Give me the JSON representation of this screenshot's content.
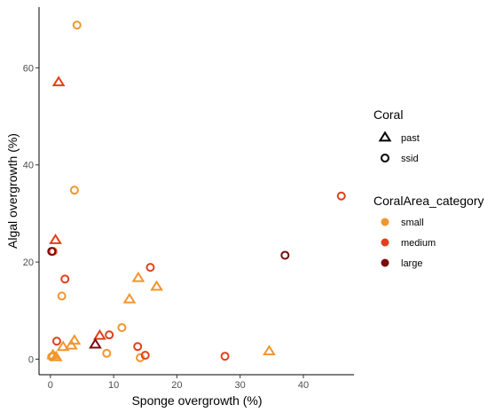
{
  "chart_data": {
    "type": "scatter",
    "title": "",
    "xlabel": "Sponge overgrowth (%)",
    "ylabel": "Algal overgrowth (%)",
    "xlim": [
      -1.8,
      48
    ],
    "ylim": [
      -3.2,
      72.5
    ],
    "xticks": [
      0,
      10,
      20,
      30,
      40
    ],
    "yticks": [
      0,
      20,
      40,
      60
    ],
    "grid": false,
    "legend_position": "right",
    "legends": [
      {
        "title": "Coral",
        "entries": [
          {
            "label": "past",
            "shape": "triangle"
          },
          {
            "label": "ssid",
            "shape": "circle"
          }
        ]
      },
      {
        "title": "CoralArea_category",
        "entries": [
          {
            "label": "small",
            "color": "#F0962E"
          },
          {
            "label": "medium",
            "color": "#E0401C"
          },
          {
            "label": "large",
            "color": "#7A0C0C"
          }
        ]
      }
    ],
    "colors": {
      "small": "#F0962E",
      "medium": "#E0401C",
      "large": "#7A0C0C"
    },
    "points": [
      {
        "x": 4.2,
        "y": 68.8,
        "coral": "ssid",
        "area": "small"
      },
      {
        "x": 3.8,
        "y": 34.8,
        "coral": "ssid",
        "area": "small"
      },
      {
        "x": 1.8,
        "y": 13.0,
        "coral": "ssid",
        "area": "small"
      },
      {
        "x": 11.3,
        "y": 6.5,
        "coral": "ssid",
        "area": "small"
      },
      {
        "x": 8.9,
        "y": 1.2,
        "coral": "ssid",
        "area": "small"
      },
      {
        "x": 14.2,
        "y": 0.3,
        "coral": "ssid",
        "area": "small"
      },
      {
        "x": 0.2,
        "y": 0.5,
        "coral": "ssid",
        "area": "small"
      },
      {
        "x": 13.9,
        "y": 16.7,
        "coral": "past",
        "area": "small"
      },
      {
        "x": 16.8,
        "y": 14.9,
        "coral": "past",
        "area": "small"
      },
      {
        "x": 12.5,
        "y": 12.3,
        "coral": "past",
        "area": "small"
      },
      {
        "x": 3.8,
        "y": 3.8,
        "coral": "past",
        "area": "small"
      },
      {
        "x": 3.3,
        "y": 2.8,
        "coral": "past",
        "area": "small"
      },
      {
        "x": 2.0,
        "y": 2.5,
        "coral": "past",
        "area": "small"
      },
      {
        "x": 34.6,
        "y": 1.6,
        "coral": "past",
        "area": "small"
      },
      {
        "x": 0.4,
        "y": 0.8,
        "coral": "past",
        "area": "small"
      },
      {
        "x": 0.9,
        "y": 0.4,
        "coral": "past",
        "area": "small"
      },
      {
        "x": 1.3,
        "y": 57.0,
        "coral": "past",
        "area": "medium"
      },
      {
        "x": 0.8,
        "y": 24.5,
        "coral": "past",
        "area": "medium"
      },
      {
        "x": 7.8,
        "y": 4.8,
        "coral": "past",
        "area": "medium"
      },
      {
        "x": 46.0,
        "y": 33.6,
        "coral": "ssid",
        "area": "medium"
      },
      {
        "x": 15.8,
        "y": 18.9,
        "coral": "ssid",
        "area": "medium"
      },
      {
        "x": 2.3,
        "y": 16.5,
        "coral": "ssid",
        "area": "medium"
      },
      {
        "x": 9.3,
        "y": 5.0,
        "coral": "ssid",
        "area": "medium"
      },
      {
        "x": 1.0,
        "y": 3.7,
        "coral": "ssid",
        "area": "medium"
      },
      {
        "x": 13.8,
        "y": 2.6,
        "coral": "ssid",
        "area": "medium"
      },
      {
        "x": 15.0,
        "y": 0.8,
        "coral": "ssid",
        "area": "medium"
      },
      {
        "x": 27.6,
        "y": 0.6,
        "coral": "ssid",
        "area": "medium"
      },
      {
        "x": 0.4,
        "y": 22.2,
        "coral": "ssid",
        "area": "medium"
      },
      {
        "x": 37.1,
        "y": 21.4,
        "coral": "ssid",
        "area": "large"
      },
      {
        "x": 0.2,
        "y": 22.2,
        "coral": "ssid",
        "area": "large"
      },
      {
        "x": 7.1,
        "y": 3.0,
        "coral": "past",
        "area": "large"
      }
    ]
  }
}
